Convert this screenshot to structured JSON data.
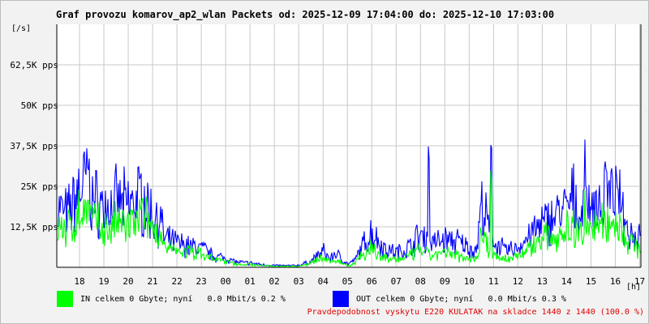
{
  "title": "Graf provozu komarov_ap2_wlan Packets od: 2025-12-09 17:04:00 do: 2025-12-10 17:03:00",
  "y_unit": "[/s]",
  "x_unit": "[h]",
  "legend": {
    "in": {
      "label": "IN celkem 0 Gbyte; nyní   0.0 Mbit/s 0.2 %",
      "color": "#00ff00"
    },
    "out": {
      "label": "OUT celkem 0 Gbyte; nyní   0.0 Mbit/s 0.3 %",
      "color": "#0000ff"
    }
  },
  "footer": "Pravdepodobnost vyskytu E220 KULATAK na skladce 1440 z 1440 (100.0 %)",
  "colors": {
    "background": "#f2f2f2",
    "plot_background": "#ffffff",
    "grid": "#c8c8c8",
    "axis": "#000000",
    "footer_text": "#e00000"
  },
  "chart_data": {
    "type": "area",
    "title": "Graf provozu komarov_ap2_wlan Packets od: 2025-12-09 17:04:00 do: 2025-12-10 17:03:00",
    "xlabel": "[h]",
    "ylabel": "[/s]",
    "x_range": [
      "2025-12-09 17:04",
      "2025-12-10 17:03"
    ],
    "ylim": [
      0,
      75000
    ],
    "grid": true,
    "y_ticks": [
      {
        "value": 12500,
        "label": "12,5K pps"
      },
      {
        "value": 25000,
        "label": "25K pps"
      },
      {
        "value": 37500,
        "label": "37,5K pps"
      },
      {
        "value": 50000,
        "label": "50K pps"
      },
      {
        "value": 62500,
        "label": "62,5K pps"
      }
    ],
    "x_ticks": [
      {
        "hour": 18,
        "label": "18"
      },
      {
        "hour": 19,
        "label": "19"
      },
      {
        "hour": 20,
        "label": "20"
      },
      {
        "hour": 21,
        "label": "21"
      },
      {
        "hour": 22,
        "label": "22"
      },
      {
        "hour": 23,
        "label": "23"
      },
      {
        "hour": 24,
        "label": "00"
      },
      {
        "hour": 25,
        "label": "01"
      },
      {
        "hour": 26,
        "label": "02"
      },
      {
        "hour": 27,
        "label": "03"
      },
      {
        "hour": 28,
        "label": "04"
      },
      {
        "hour": 29,
        "label": "05"
      },
      {
        "hour": 30,
        "label": "06"
      },
      {
        "hour": 31,
        "label": "07"
      },
      {
        "hour": 32,
        "label": "08"
      },
      {
        "hour": 33,
        "label": "09"
      },
      {
        "hour": 34,
        "label": "10"
      },
      {
        "hour": 35,
        "label": "11"
      },
      {
        "hour": 36,
        "label": "12"
      },
      {
        "hour": 37,
        "label": "13"
      },
      {
        "hour": 38,
        "label": "14"
      },
      {
        "hour": 39,
        "label": "15"
      },
      {
        "hour": 40,
        "label": "16"
      },
      {
        "hour": 41,
        "label": "17"
      }
    ],
    "series": [
      {
        "name": "IN",
        "color": "#00ff00",
        "x": [
          17.2,
          17.5,
          18,
          18.3,
          18.5,
          19,
          19.3,
          19.5,
          20,
          20.3,
          20.5,
          21,
          21.3,
          21.5,
          22,
          22.5,
          23,
          23.5,
          24,
          24.5,
          25,
          25.5,
          26,
          26.5,
          27,
          27.5,
          28,
          28.3,
          28.5,
          29,
          29.3,
          29.5,
          30,
          30.5,
          31,
          31.5,
          32,
          32.3,
          32.5,
          33,
          33.5,
          34,
          34.3,
          34.5,
          35,
          35.5,
          36,
          36.5,
          37,
          37.5,
          38,
          38.3,
          38.5,
          39,
          39.5,
          40,
          40.3,
          40.5,
          41
        ],
        "values": [
          13000,
          11000,
          16000,
          20000,
          14000,
          12000,
          11500,
          13500,
          12500,
          13500,
          16000,
          12000,
          10500,
          5500,
          5000,
          4800,
          4200,
          2500,
          1800,
          800,
          900,
          500,
          400,
          300,
          400,
          1200,
          3000,
          1500,
          2500,
          500,
          1200,
          3500,
          5500,
          3000,
          2200,
          3200,
          5500,
          4000,
          3500,
          4200,
          3800,
          3000,
          2500,
          10000,
          4000,
          2500,
          3500,
          6000,
          8500,
          10000,
          11000,
          13000,
          12000,
          12500,
          13000,
          14500,
          12000,
          8000,
          6000
        ]
      },
      {
        "name": "OUT",
        "color": "#0000ff",
        "x": [
          17.2,
          17.5,
          18,
          18.3,
          18.5,
          19,
          19.3,
          19.5,
          20,
          20.3,
          20.5,
          21,
          21.3,
          21.5,
          22,
          22.5,
          23,
          23.5,
          24,
          24.5,
          25,
          25.5,
          26,
          26.5,
          27,
          27.5,
          28,
          28.3,
          28.5,
          29,
          29.3,
          29.5,
          30,
          30.5,
          31,
          31.5,
          32,
          32.3,
          32.5,
          33,
          33.5,
          34,
          34.3,
          34.5,
          35,
          35.5,
          36,
          36.5,
          37,
          37.5,
          38,
          38.3,
          38.5,
          39,
          39.5,
          40,
          40.3,
          40.5,
          41
        ],
        "values": [
          18000,
          16000,
          24000,
          27000,
          21000,
          18500,
          19000,
          20000,
          19000,
          21000,
          22000,
          16000,
          15000,
          8500,
          7500,
          6500,
          6000,
          3500,
          2800,
          1500,
          1300,
          800,
          600,
          500,
          600,
          1800,
          5000,
          2500,
          4500,
          1000,
          2000,
          5000,
          11000,
          6000,
          4500,
          6000,
          10000,
          9000,
          7500,
          8500,
          8000,
          6000,
          5000,
          19000,
          8000,
          5000,
          6000,
          10000,
          13000,
          16000,
          18000,
          21000,
          17000,
          19000,
          19000,
          22000,
          18000,
          12000,
          9000
        ]
      }
    ],
    "peaks": [
      {
        "series": "OUT",
        "x": 32.35,
        "value": 38000
      },
      {
        "series": "OUT",
        "x": 34.9,
        "value": 39500
      },
      {
        "series": "OUT",
        "x": 38.75,
        "value": 46000
      },
      {
        "series": "OUT",
        "x": 39.6,
        "value": 35000
      },
      {
        "series": "OUT",
        "x": 18.35,
        "value": 33000
      },
      {
        "series": "IN",
        "x": 34.9,
        "value": 30000
      },
      {
        "series": "IN",
        "x": 38.75,
        "value": 25000
      }
    ]
  }
}
